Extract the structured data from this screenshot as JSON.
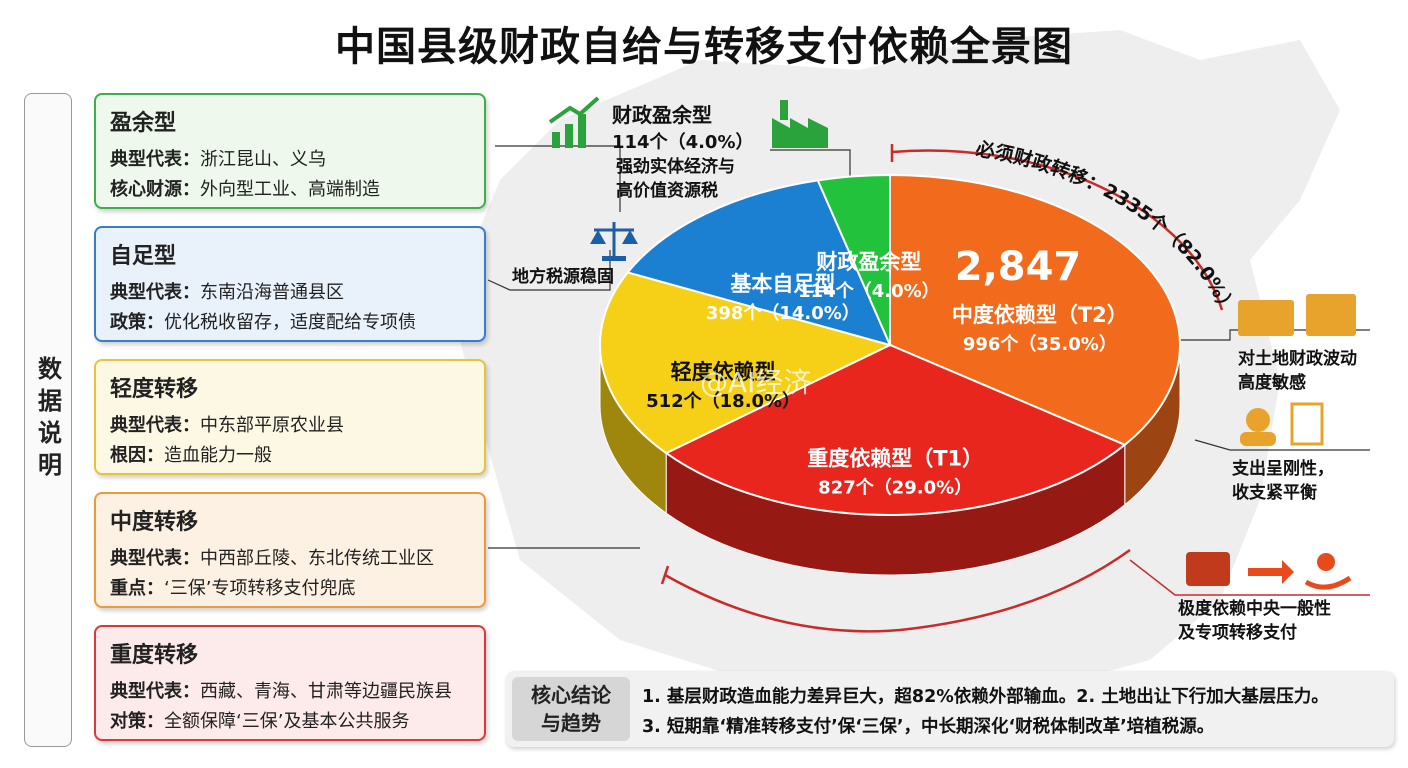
{
  "title": "中国县级财政自给与转移支付依赖全景图",
  "side_label": "数据说明",
  "panels": [
    {
      "title": "盈余型",
      "color": "#3fae4a",
      "bg": "#eef8ec",
      "lines": [
        {
          "label": "典型代表：",
          "text": "浙江昆山、义乌"
        },
        {
          "label": "核心财源：",
          "text": "外向型工业、高端制造"
        }
      ]
    },
    {
      "title": "自足型",
      "color": "#3b7cc8",
      "bg": "#e9f1fb",
      "lines": [
        {
          "label": "典型代表：",
          "text": "东南沿海普通县区"
        },
        {
          "label": "政策：",
          "text": "优化税收留存，适度配给专项债"
        }
      ]
    },
    {
      "title": "轻度转移",
      "color": "#e8c33a",
      "bg": "#fdf8e4",
      "lines": [
        {
          "label": "典型代表：",
          "text": "中东部平原农业县"
        },
        {
          "label": "根因：",
          "text": "造血能力一般"
        }
      ]
    },
    {
      "title": "中度转移",
      "color": "#eb9a3c",
      "bg": "#fdf1e3",
      "lines": [
        {
          "label": "典型代表：",
          "text": "中西部丘陵、东北传统工业区"
        },
        {
          "label": "重点：",
          "text": "‘三保’专项转移支付兜底"
        }
      ]
    },
    {
      "title": "重度转移",
      "color": "#d83a3a",
      "bg": "#fdeaea",
      "lines": [
        {
          "label": "典型代表：",
          "text": "西藏、青海、甘肃等边疆民族县"
        },
        {
          "label": "对策：",
          "text": "全额保障‘三保’及基本公共服务"
        }
      ]
    }
  ],
  "chart_data": {
    "type": "pie",
    "total": {
      "value": 2847,
      "label": "2,847"
    },
    "categories": [
      "中度依赖型（T2）",
      "重度依赖型（T1）",
      "轻度依赖型",
      "基本自足型",
      "财政盈余型"
    ],
    "values": [
      996,
      827,
      512,
      398,
      114
    ],
    "value_labels": [
      "996个（35.0%）",
      "827个（29.0%）",
      "512个（18.0%）",
      "398个（14.0%）",
      "114个（4.0%）"
    ],
    "colors": [
      "#f26a1c",
      "#e8261e",
      "#f5d016",
      "#1b7fd2",
      "#22c23c"
    ]
  },
  "annotations": {
    "surplus_note": [
      "强劲实体经济与",
      "高价值资源税"
    ],
    "tax_note": "地方税源稳固",
    "transfer_arc": "必须财政转移：2335个（82.0%）",
    "land_note": [
      "对土地财政波动",
      "高度敏感"
    ],
    "spend_note": [
      "支出呈刚性，",
      "收支紧平衡"
    ],
    "central_note": [
      "极度依赖中央一般性",
      "及专项转移支付"
    ]
  },
  "conclusion": {
    "tag": [
      "核心结论",
      "与趋势"
    ],
    "lines": [
      "1. 基层财政造血能力差异巨大，超82%依赖外部输血。2. 土地出让下行加大基层压力。",
      "3. 短期靠‘精准转移支付’保‘三保’，中长期深化‘财税体制改革’培植税源。"
    ]
  },
  "watermark": "@AI经济"
}
